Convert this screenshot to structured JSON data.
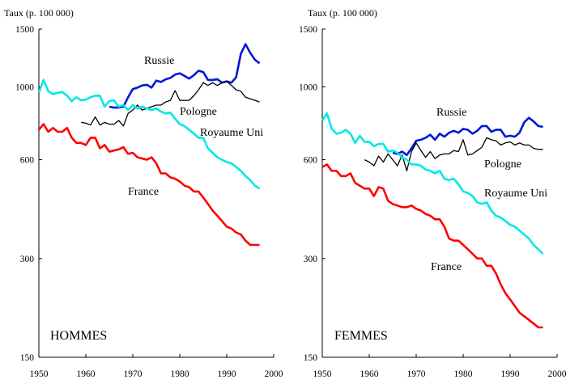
{
  "chart_data": [
    {
      "type": "line",
      "panel_label": "HOMMES",
      "ylabel": "Taux (p. 100 000)",
      "yscale": "log",
      "xlim": [
        1950,
        2000
      ],
      "ylim": [
        150,
        1500
      ],
      "xticks": [
        "1950",
        "1960",
        "1970",
        "1980",
        "1990",
        "2000"
      ],
      "yticks": [
        "1500",
        "1000",
        "600",
        "300",
        "150"
      ],
      "series": [
        {
          "name": "Russie",
          "color": "#0018d8",
          "x": [
            1965,
            1966,
            1967,
            1968,
            1969,
            1970,
            1971,
            1972,
            1973,
            1974,
            1975,
            1976,
            1977,
            1978,
            1979,
            1980,
            1981,
            1982,
            1983,
            1984,
            1985,
            1986,
            1987,
            1988,
            1989,
            1990,
            1991,
            1992,
            1993,
            1994,
            1995,
            1996,
            1997
          ],
          "y": [
            870,
            865,
            865,
            870,
            930,
            985,
            995,
            1010,
            1015,
            995,
            1045,
            1035,
            1055,
            1065,
            1090,
            1100,
            1080,
            1060,
            1085,
            1120,
            1110,
            1050,
            1050,
            1055,
            1030,
            1040,
            1030,
            1070,
            1260,
            1350,
            1270,
            1210,
            1180
          ]
        },
        {
          "name": "Pologne",
          "color": "#000000",
          "x": [
            1959,
            1960,
            1961,
            1962,
            1963,
            1964,
            1965,
            1966,
            1967,
            1968,
            1969,
            1970,
            1971,
            1972,
            1973,
            1974,
            1975,
            1976,
            1977,
            1978,
            1979,
            1980,
            1981,
            1982,
            1983,
            1984,
            1985,
            1986,
            1987,
            1988,
            1989,
            1990,
            1991,
            1992,
            1993,
            1994,
            1995,
            1996,
            1997
          ],
          "y": [
            780,
            775,
            765,
            810,
            765,
            780,
            770,
            770,
            790,
            760,
            830,
            850,
            880,
            850,
            860,
            870,
            880,
            880,
            900,
            910,
            975,
            910,
            910,
            910,
            940,
            980,
            1030,
            1010,
            1030,
            1010,
            1030,
            1040,
            1010,
            980,
            970,
            930,
            920,
            910,
            900
          ]
        },
        {
          "name": "Royaume Uni",
          "color": "#00e8e8",
          "x": [
            1950,
            1951,
            1952,
            1953,
            1954,
            1955,
            1956,
            1957,
            1958,
            1959,
            1960,
            1961,
            1962,
            1963,
            1964,
            1965,
            1966,
            1967,
            1968,
            1969,
            1970,
            1971,
            1972,
            1973,
            1974,
            1975,
            1976,
            1977,
            1978,
            1979,
            1980,
            1981,
            1982,
            1983,
            1984,
            1985,
            1986,
            1987,
            1988,
            1989,
            1990,
            1991,
            1992,
            1993,
            1994,
            1995,
            1996,
            1997
          ],
          "y": [
            960,
            1050,
            970,
            950,
            960,
            965,
            940,
            905,
            930,
            910,
            915,
            930,
            940,
            940,
            870,
            905,
            910,
            870,
            880,
            850,
            880,
            860,
            870,
            860,
            850,
            860,
            840,
            830,
            835,
            800,
            770,
            760,
            740,
            720,
            700,
            700,
            650,
            630,
            610,
            600,
            590,
            585,
            570,
            555,
            535,
            520,
            500,
            490
          ]
        },
        {
          "name": "France",
          "color": "#ff0000",
          "x": [
            1950,
            1951,
            1952,
            1953,
            1954,
            1955,
            1956,
            1957,
            1958,
            1959,
            1960,
            1961,
            1962,
            1963,
            1964,
            1965,
            1966,
            1967,
            1968,
            1969,
            1970,
            1971,
            1972,
            1973,
            1974,
            1975,
            1976,
            1977,
            1978,
            1979,
            1980,
            1981,
            1982,
            1983,
            1984,
            1985,
            1986,
            1987,
            1988,
            1989,
            1990,
            1991,
            1992,
            1993,
            1994,
            1995,
            1996,
            1997
          ],
          "y": [
            740,
            770,
            730,
            750,
            730,
            730,
            750,
            700,
            675,
            675,
            665,
            700,
            700,
            650,
            665,
            635,
            640,
            645,
            655,
            625,
            630,
            610,
            605,
            600,
            610,
            585,
            545,
            545,
            530,
            525,
            515,
            500,
            495,
            480,
            480,
            460,
            440,
            420,
            405,
            390,
            375,
            370,
            360,
            355,
            340,
            330,
            330,
            330
          ]
        }
      ]
    },
    {
      "type": "line",
      "panel_label": "FEMMES",
      "ylabel": "Taux (p. 100 000)",
      "yscale": "log",
      "xlim": [
        1950,
        2000
      ],
      "ylim": [
        150,
        1500
      ],
      "xticks": [
        "1950",
        "1960",
        "1970",
        "1980",
        "1990",
        "2000"
      ],
      "yticks": [
        "1500",
        "1000",
        "600",
        "300",
        "150"
      ],
      "series": [
        {
          "name": "Russie",
          "color": "#0018d8",
          "x": [
            1965,
            1966,
            1967,
            1968,
            1969,
            1970,
            1971,
            1972,
            1973,
            1974,
            1975,
            1976,
            1977,
            1978,
            1979,
            1980,
            1981,
            1982,
            1983,
            1984,
            1985,
            1986,
            1987,
            1988,
            1989,
            1990,
            1991,
            1992,
            1993,
            1994,
            1995,
            1996,
            1997
          ],
          "y": [
            630,
            625,
            635,
            620,
            650,
            685,
            690,
            700,
            715,
            690,
            720,
            705,
            725,
            735,
            725,
            745,
            740,
            720,
            735,
            760,
            760,
            730,
            740,
            740,
            705,
            710,
            705,
            725,
            780,
            805,
            785,
            760,
            755
          ]
        },
        {
          "name": "Pologne",
          "color": "#000000",
          "x": [
            1959,
            1960,
            1961,
            1962,
            1963,
            1964,
            1965,
            1966,
            1967,
            1968,
            1969,
            1970,
            1971,
            1972,
            1973,
            1974,
            1975,
            1976,
            1977,
            1978,
            1979,
            1980,
            1981,
            1982,
            1983,
            1984,
            1985,
            1986,
            1987,
            1988,
            1989,
            1990,
            1991,
            1992,
            1993,
            1994,
            1995,
            1996,
            1997
          ],
          "y": [
            600,
            590,
            575,
            615,
            590,
            625,
            600,
            575,
            620,
            555,
            635,
            675,
            640,
            610,
            635,
            605,
            620,
            625,
            625,
            640,
            635,
            690,
            620,
            625,
            640,
            655,
            700,
            690,
            685,
            665,
            675,
            680,
            665,
            675,
            665,
            665,
            650,
            645,
            645
          ]
        },
        {
          "name": "Royaume Uni",
          "color": "#00e8e8",
          "x": [
            1950,
            1951,
            1952,
            1953,
            1954,
            1955,
            1956,
            1957,
            1958,
            1959,
            1960,
            1961,
            1962,
            1963,
            1964,
            1965,
            1966,
            1967,
            1968,
            1969,
            1970,
            1971,
            1972,
            1973,
            1974,
            1975,
            1976,
            1977,
            1978,
            1979,
            1980,
            1981,
            1982,
            1983,
            1984,
            1985,
            1986,
            1987,
            1988,
            1989,
            1990,
            1991,
            1992,
            1993,
            1994,
            1995,
            1996,
            1997
          ],
          "y": [
            790,
            830,
            745,
            720,
            725,
            740,
            720,
            675,
            710,
            680,
            680,
            660,
            670,
            670,
            635,
            640,
            630,
            610,
            600,
            580,
            580,
            575,
            560,
            555,
            545,
            555,
            525,
            520,
            525,
            505,
            480,
            475,
            465,
            445,
            440,
            445,
            420,
            405,
            400,
            390,
            380,
            375,
            365,
            355,
            345,
            330,
            320,
            310
          ]
        },
        {
          "name": "France",
          "color": "#ff0000",
          "x": [
            1950,
            1951,
            1952,
            1953,
            1954,
            1955,
            1956,
            1957,
            1958,
            1959,
            1960,
            1961,
            1962,
            1963,
            1964,
            1965,
            1966,
            1967,
            1968,
            1969,
            1970,
            1971,
            1972,
            1973,
            1974,
            1975,
            1976,
            1977,
            1978,
            1979,
            1980,
            1981,
            1982,
            1983,
            1984,
            1985,
            1986,
            1987,
            1988,
            1989,
            1990,
            1991,
            1992,
            1993,
            1994,
            1995,
            1996,
            1997
          ],
          "y": [
            570,
            580,
            555,
            555,
            535,
            535,
            545,
            510,
            500,
            490,
            490,
            465,
            495,
            490,
            450,
            440,
            435,
            430,
            430,
            435,
            425,
            420,
            410,
            405,
            395,
            395,
            375,
            345,
            340,
            340,
            330,
            320,
            310,
            300,
            300,
            285,
            285,
            270,
            250,
            235,
            225,
            215,
            205,
            200,
            195,
            190,
            185,
            185
          ]
        }
      ]
    }
  ]
}
